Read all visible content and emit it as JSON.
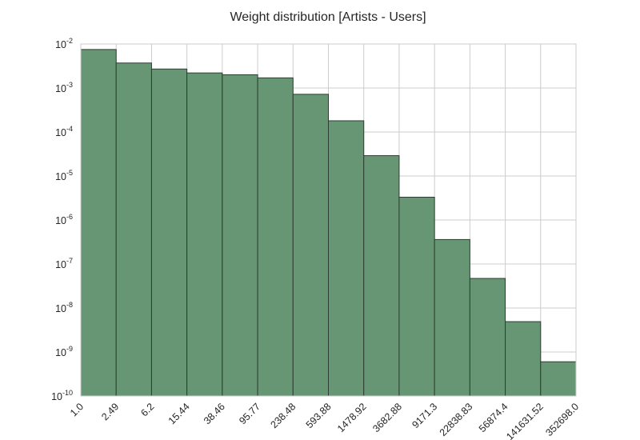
{
  "chart_data": {
    "type": "bar",
    "title": "Weight distribution [Artists - Users]",
    "xlabel": "",
    "ylabel": "",
    "x_tick_labels": [
      "1.0",
      "2.49",
      "6.2",
      "15.44",
      "38.46",
      "95.77",
      "238.48",
      "593.88",
      "1478.92",
      "3682.88",
      "9171.3",
      "22838.83",
      "56874.4",
      "141631.52",
      "352698.0"
    ],
    "bin_edges": [
      1.0,
      2.49,
      6.2,
      15.44,
      38.46,
      95.77,
      238.48,
      593.88,
      1478.92,
      3682.88,
      9171.3,
      22838.83,
      56874.4,
      141631.52,
      352698.0
    ],
    "values": [
      0.0075,
      0.0037,
      0.0027,
      0.0022,
      0.002,
      0.0017,
      0.00072,
      0.00018,
      2.9e-05,
      3.3e-06,
      3.6e-07,
      4.7e-08,
      4.9e-09,
      6e-10
    ],
    "y_scale": "log",
    "ylim": [
      1e-10,
      0.01
    ],
    "y_tick_labels": [
      {
        "base": "10",
        "exp": "-10"
      },
      {
        "base": "10",
        "exp": "-9"
      },
      {
        "base": "10",
        "exp": "-8"
      },
      {
        "base": "10",
        "exp": "-7"
      },
      {
        "base": "10",
        "exp": "-6"
      },
      {
        "base": "10",
        "exp": "-5"
      },
      {
        "base": "10",
        "exp": "-4"
      },
      {
        "base": "10",
        "exp": "-3"
      },
      {
        "base": "10",
        "exp": "-2"
      }
    ],
    "grid": true,
    "bar_color": "#669673",
    "bar_edge_color": "#2e3d31",
    "grid_color": "#cccccc"
  }
}
